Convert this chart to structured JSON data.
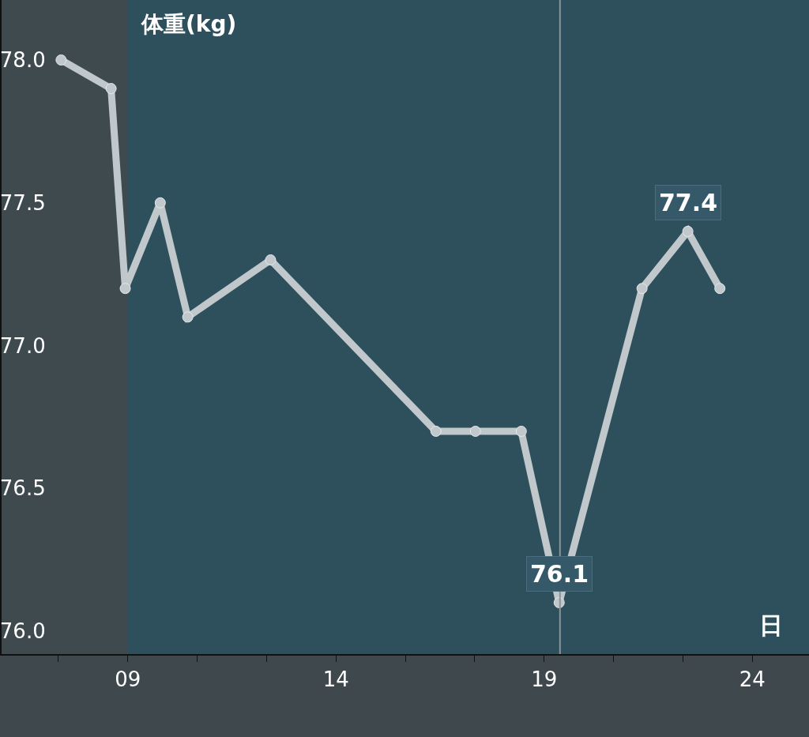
{
  "chart_data": {
    "type": "line",
    "ylabel": "体重(kg)",
    "xlabel": "日",
    "x": [
      7.4,
      8.6,
      8.94,
      9.78,
      10.44,
      12.43,
      16.4,
      17.35,
      18.45,
      19.36,
      21.35,
      22.45,
      23.22
    ],
    "series": [
      {
        "color": "#c0c8cc",
        "values": [
          78.0,
          77.9,
          77.2,
          77.5,
          77.1,
          77.3,
          76.7,
          76.7,
          76.7,
          76.1,
          77.2,
          77.4,
          77.2
        ],
        "value_labels": [
          null,
          null,
          null,
          null,
          null,
          null,
          null,
          null,
          null,
          "76.1",
          null,
          "77.4",
          null
        ]
      }
    ],
    "xlim": [
      5.97,
      25.36
    ],
    "ylim": [
      75.92,
      78.21
    ],
    "xticks": [
      {
        "value": 7.33,
        "label": null
      },
      {
        "value": 9,
        "label": "09"
      },
      {
        "value": 10.67,
        "label": null
      },
      {
        "value": 12.33,
        "label": null
      },
      {
        "value": 14,
        "label": "14"
      },
      {
        "value": 15.67,
        "label": null
      },
      {
        "value": 17.33,
        "label": null
      },
      {
        "value": 19,
        "label": "19"
      },
      {
        "value": 20.67,
        "label": null
      },
      {
        "value": 22.33,
        "label": null
      },
      {
        "value": 24,
        "label": "24"
      }
    ],
    "yticks": [
      {
        "value": 76.0,
        "label": "76.0"
      },
      {
        "value": 76.5,
        "label": "76.5"
      },
      {
        "value": 77.0,
        "label": "77.0"
      },
      {
        "value": 77.5,
        "label": "77.5"
      },
      {
        "value": 78.0,
        "label": "78.0"
      }
    ],
    "ref_lines": [
      {
        "axis": "x",
        "value": 19.38,
        "color": "#8a9499"
      }
    ],
    "bands": [
      {
        "axis": "x",
        "from": 5.97,
        "to": 9,
        "color": "#3f4a4f"
      }
    ],
    "marker": "circle",
    "line_style": "solid",
    "grid": false,
    "legend": false
  }
}
